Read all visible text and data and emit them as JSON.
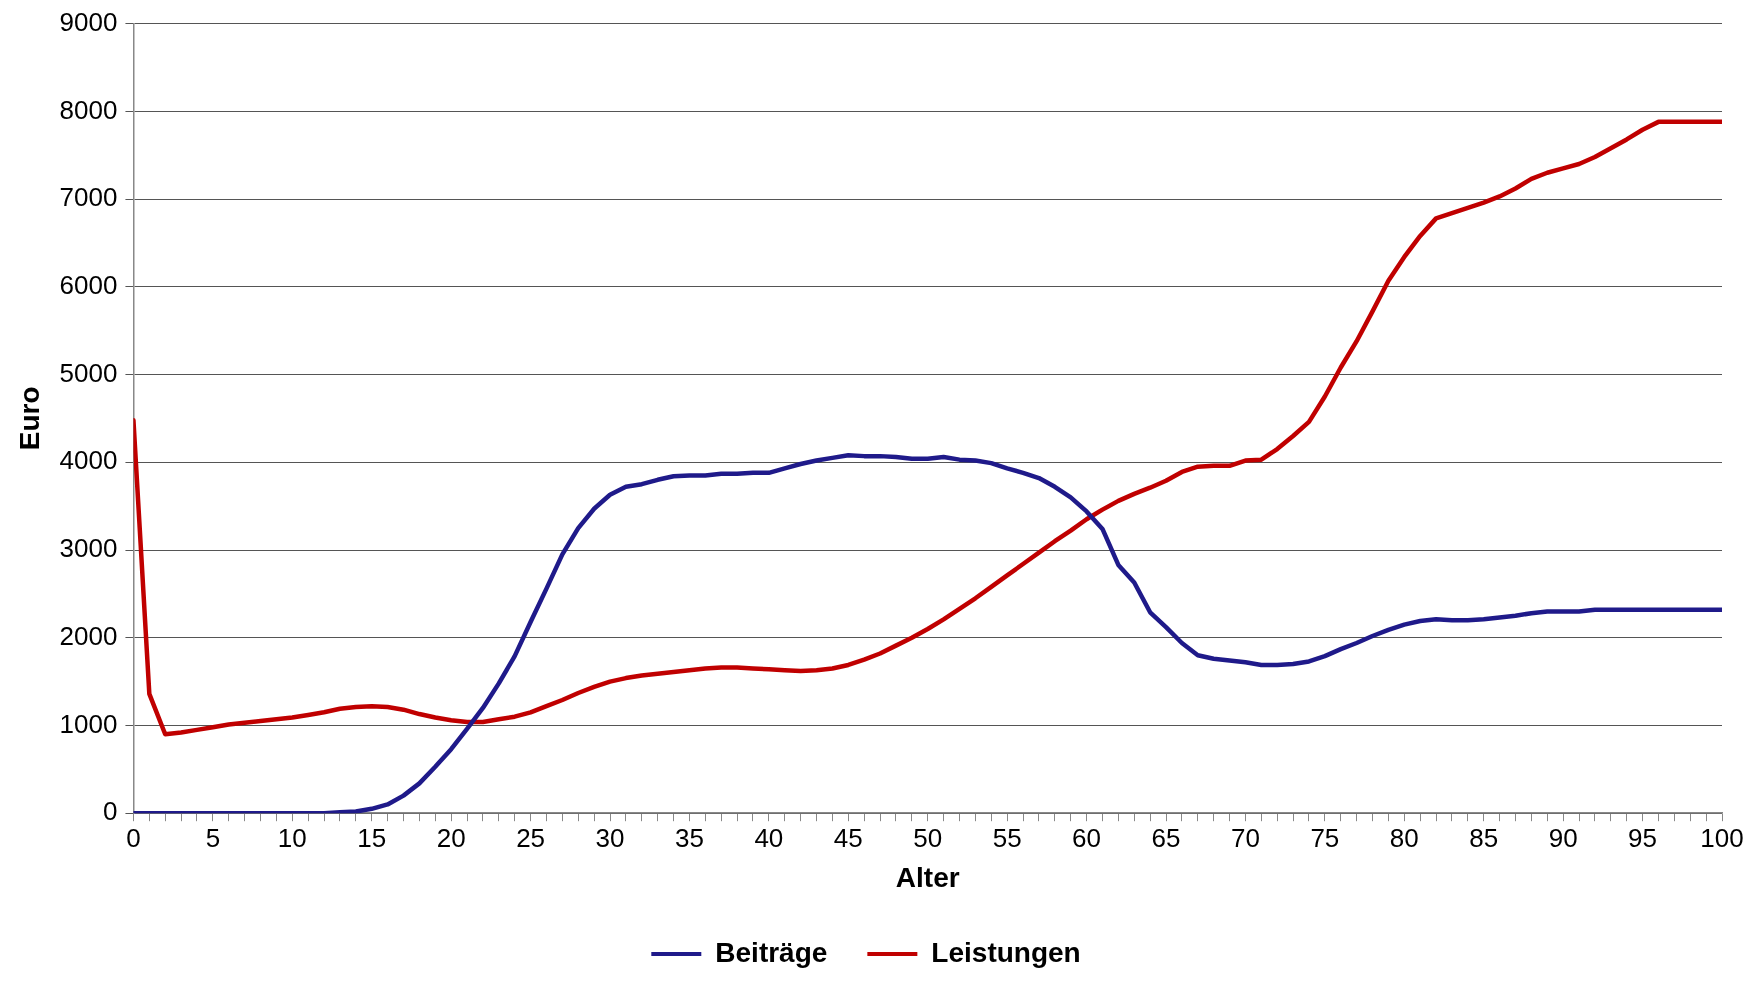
{
  "chart_data": {
    "type": "line",
    "xlabel": "Alter",
    "ylabel": "Euro",
    "x": [
      0,
      1,
      2,
      3,
      4,
      5,
      6,
      7,
      8,
      9,
      10,
      11,
      12,
      13,
      14,
      15,
      16,
      17,
      18,
      19,
      20,
      21,
      22,
      23,
      24,
      25,
      26,
      27,
      28,
      29,
      30,
      31,
      32,
      33,
      34,
      35,
      36,
      37,
      38,
      39,
      40,
      41,
      42,
      43,
      44,
      45,
      46,
      47,
      48,
      49,
      50,
      51,
      52,
      53,
      54,
      55,
      56,
      57,
      58,
      59,
      60,
      61,
      62,
      63,
      64,
      65,
      66,
      67,
      68,
      69,
      70,
      71,
      72,
      73,
      74,
      75,
      76,
      77,
      78,
      79,
      80,
      81,
      82,
      83,
      84,
      85,
      86,
      87,
      88,
      89,
      90,
      91,
      92,
      93,
      94,
      95,
      96,
      97,
      98,
      99,
      100
    ],
    "series": [
      {
        "name": "Beiträge",
        "color": "#1f1a8a",
        "values": [
          0,
          0,
          0,
          0,
          0,
          0,
          0,
          0,
          0,
          0,
          0,
          0,
          0,
          10,
          20,
          50,
          100,
          200,
          340,
          530,
          730,
          960,
          1200,
          1480,
          1790,
          2180,
          2560,
          2950,
          3250,
          3470,
          3630,
          3720,
          3750,
          3800,
          3840,
          3850,
          3850,
          3870,
          3870,
          3880,
          3880,
          3930,
          3980,
          4020,
          4050,
          4080,
          4070,
          4070,
          4060,
          4040,
          4040,
          4060,
          4030,
          4020,
          3990,
          3930,
          3880,
          3820,
          3720,
          3600,
          3440,
          3240,
          2830,
          2630,
          2290,
          2120,
          1940,
          1800,
          1760,
          1740,
          1720,
          1690,
          1690,
          1700,
          1730,
          1790,
          1870,
          1940,
          2020,
          2090,
          2150,
          2190,
          2210,
          2200,
          2200,
          2210,
          2230,
          2250,
          2280,
          2300,
          2300,
          2300,
          2320,
          2320,
          2320,
          2320,
          2320,
          2320,
          2320,
          2320,
          2320
        ]
      },
      {
        "name": "Leistungen",
        "color": "#c00000",
        "values": [
          4480,
          1360,
          900,
          920,
          950,
          980,
          1010,
          1030,
          1050,
          1070,
          1090,
          1120,
          1150,
          1190,
          1210,
          1220,
          1210,
          1180,
          1130,
          1090,
          1060,
          1040,
          1040,
          1070,
          1100,
          1150,
          1220,
          1290,
          1370,
          1440,
          1500,
          1540,
          1570,
          1590,
          1610,
          1630,
          1650,
          1660,
          1660,
          1650,
          1640,
          1630,
          1620,
          1630,
          1650,
          1690,
          1750,
          1820,
          1910,
          2000,
          2100,
          2210,
          2330,
          2450,
          2580,
          2710,
          2840,
          2970,
          3100,
          3220,
          3350,
          3460,
          3560,
          3640,
          3710,
          3790,
          3890,
          3950,
          3960,
          3960,
          4020,
          4030,
          4150,
          4300,
          4460,
          4750,
          5080,
          5380,
          5720,
          6070,
          6340,
          6580,
          6780,
          6840,
          6900,
          6960,
          7030,
          7120,
          7230,
          7300,
          7350,
          7400,
          7480,
          7580,
          7680,
          7790,
          7880,
          7880,
          7880,
          7880,
          7880
        ]
      }
    ],
    "xlim": [
      0,
      100
    ],
    "xticks": [
      0,
      {
        "value": 1,
        "label": null
      },
      {
        "value": 2,
        "label": null
      },
      {
        "value": 3,
        "label": null
      },
      {
        "value": 4,
        "label": null
      },
      5,
      {
        "value": 6,
        "label": null
      },
      {
        "value": 7,
        "label": null
      },
      {
        "value": 8,
        "label": null
      },
      {
        "value": 9,
        "label": null
      },
      10,
      {
        "value": 11,
        "label": null
      },
      {
        "value": 12,
        "label": null
      },
      {
        "value": 13,
        "label": null
      },
      {
        "value": 14,
        "label": null
      },
      15,
      {
        "value": 16,
        "label": null
      },
      {
        "value": 17,
        "label": null
      },
      {
        "value": 18,
        "label": null
      },
      {
        "value": 19,
        "label": null
      },
      20,
      {
        "value": 21,
        "label": null
      },
      {
        "value": 22,
        "label": null
      },
      {
        "value": 23,
        "label": null
      },
      {
        "value": 24,
        "label": null
      },
      25,
      {
        "value": 26,
        "label": null
      },
      {
        "value": 27,
        "label": null
      },
      {
        "value": 28,
        "label": null
      },
      {
        "value": 29,
        "label": null
      },
      30,
      {
        "value": 31,
        "label": null
      },
      {
        "value": 32,
        "label": null
      },
      {
        "value": 33,
        "label": null
      },
      {
        "value": 34,
        "label": null
      },
      35,
      {
        "value": 36,
        "label": null
      },
      {
        "value": 37,
        "label": null
      },
      {
        "value": 38,
        "label": null
      },
      {
        "value": 39,
        "label": null
      },
      40,
      {
        "value": 41,
        "label": null
      },
      {
        "value": 42,
        "label": null
      },
      {
        "value": 43,
        "label": null
      },
      {
        "value": 44,
        "label": null
      },
      45,
      {
        "value": 46,
        "label": null
      },
      {
        "value": 47,
        "label": null
      },
      {
        "value": 48,
        "label": null
      },
      {
        "value": 49,
        "label": null
      },
      50,
      {
        "value": 51,
        "label": null
      },
      {
        "value": 52,
        "label": null
      },
      {
        "value": 53,
        "label": null
      },
      {
        "value": 54,
        "label": null
      },
      55,
      {
        "value": 56,
        "label": null
      },
      {
        "value": 57,
        "label": null
      },
      {
        "value": 58,
        "label": null
      },
      {
        "value": 59,
        "label": null
      },
      60,
      {
        "value": 61,
        "label": null
      },
      {
        "value": 62,
        "label": null
      },
      {
        "value": 63,
        "label": null
      },
      {
        "value": 64,
        "label": null
      },
      65,
      {
        "value": 66,
        "label": null
      },
      {
        "value": 67,
        "label": null
      },
      {
        "value": 68,
        "label": null
      },
      {
        "value": 69,
        "label": null
      },
      70,
      {
        "value": 71,
        "label": null
      },
      {
        "value": 72,
        "label": null
      },
      {
        "value": 73,
        "label": null
      },
      {
        "value": 74,
        "label": null
      },
      75,
      {
        "value": 76,
        "label": null
      },
      {
        "value": 77,
        "label": null
      },
      {
        "value": 78,
        "label": null
      },
      {
        "value": 79,
        "label": null
      },
      80,
      {
        "value": 81,
        "label": null
      },
      {
        "value": 82,
        "label": null
      },
      {
        "value": 83,
        "label": null
      },
      {
        "value": 84,
        "label": null
      },
      85,
      {
        "value": 86,
        "label": null
      },
      {
        "value": 87,
        "label": null
      },
      {
        "value": 88,
        "label": null
      },
      {
        "value": 89,
        "label": null
      },
      90,
      {
        "value": 91,
        "label": null
      },
      {
        "value": 92,
        "label": null
      },
      {
        "value": 93,
        "label": null
      },
      {
        "value": 94,
        "label": null
      },
      95,
      {
        "value": 96,
        "label": null
      },
      {
        "value": 97,
        "label": null
      },
      {
        "value": 98,
        "label": null
      },
      {
        "value": 99,
        "label": null
      },
      100
    ],
    "ylim": [
      0,
      9000
    ],
    "yticks": [
      0,
      1000,
      2000,
      3000,
      4000,
      5000,
      6000,
      7000,
      8000,
      9000
    ],
    "grid": "y",
    "legend": "bottom",
    "marker": "none",
    "line_style": "solid"
  }
}
